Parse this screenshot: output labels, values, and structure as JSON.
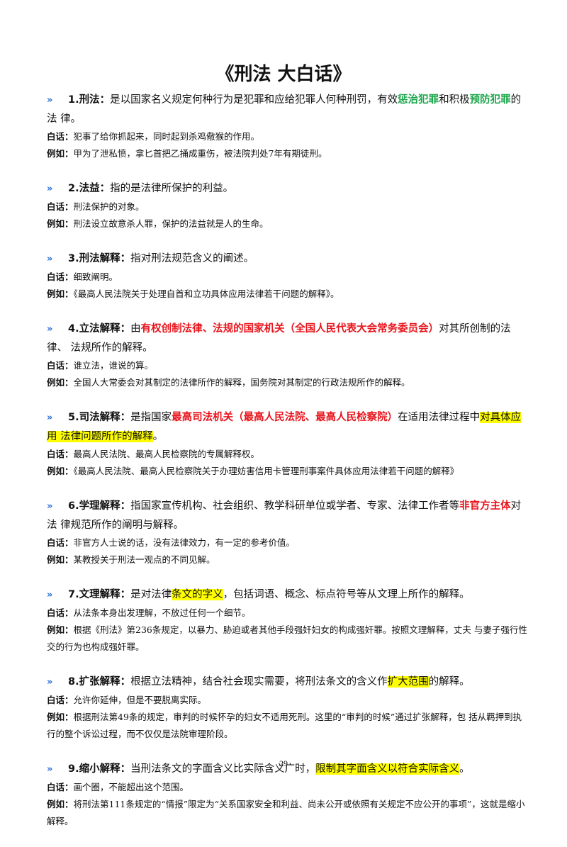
{
  "title": "《刑法 大白话》",
  "entries": [
    {
      "heading": "1.刑法：",
      "definition": [
        {
          "text": "是以国家名义规定何种行为是犯罪和应给犯罪人何种刑罚，有效"
        },
        {
          "text": "惩治犯罪",
          "color": "#1aa64a",
          "bold": true
        },
        {
          "text": "和积极"
        },
        {
          "text": "预防犯罪",
          "color": "#1aa64a",
          "bold": true
        },
        {
          "text": "的法 律。"
        }
      ],
      "plain": {
        "label": "白话：",
        "text": "犯事了给你抓起来，同时起到杀鸡儆猴的作用。"
      },
      "example": {
        "label": "例如：",
        "text": "甲为了泄私愤，拿匕首把乙捅成重伤，被法院判处7年有期徒刑。"
      }
    },
    {
      "heading": "2.法益：",
      "definition": [
        {
          "text": "指的是法律所保护的利益。"
        }
      ],
      "plain": {
        "label": "白话：",
        "text": "刑法保护的对象。"
      },
      "example": {
        "label": "例如：",
        "text": "刑法设立故意杀人罪，保护的法益就是人的生命。"
      }
    },
    {
      "heading": "3.刑法解释：",
      "definition": [
        {
          "text": "指对刑法规范含义的阐述。"
        }
      ],
      "plain": {
        "label": "白话：",
        "text": "细致阐明。"
      },
      "example": {
        "label": "例如：",
        "text": "《最高人民法院关于处理自首和立功具体应用法律若干问题的解释》。"
      }
    },
    {
      "heading": "4.立法解释：",
      "definition": [
        {
          "text": "由"
        },
        {
          "text": "有权创制法律、法规的国家机关（全国人民代表大会常务委员会）",
          "color": "#e8141c",
          "bold": true
        },
        {
          "text": "对其所创制的法律、 法规所作的解释。"
        }
      ],
      "plain": {
        "label": "白话：",
        "text": "谁立法，谁说的算。"
      },
      "example": {
        "label": "例如：",
        "text": "全国人大常委会对其制定的法律所作的解释，国务院对其制定的行政法规所作的解释。"
      }
    },
    {
      "heading": "5.司法解释：",
      "definition": [
        {
          "text": "是指国家"
        },
        {
          "text": "最高司法机关（最高人民法院、最高人民检察院）",
          "color": "#e8141c",
          "bold": true
        },
        {
          "text": "在适用法律过程中"
        },
        {
          "text": "对具体应用 法律问题所作的解释",
          "highlight": true
        },
        {
          "text": "。"
        }
      ],
      "plain": {
        "label": "白话：",
        "text": "最高人民法院、最高人民检察院的专属解释权。"
      },
      "example": {
        "label": "例如：",
        "text": "《最高人民法院、最高人民检察院关于办理妨害信用卡管理刑事案件具体应用法律若干问题的解释》"
      }
    },
    {
      "heading": "6.学理解释：",
      "definition": [
        {
          "text": "指国家宣传机构、社会组织、教学科研单位或学者、专家、法律工作者等"
        },
        {
          "text": "非官方主体",
          "color": "#e8141c",
          "bold": true
        },
        {
          "text": "对法 律规范所作的阐明与解释。"
        }
      ],
      "plain": {
        "label": "白话：",
        "text": "非官方人士说的话，没有法律效力，有一定的参考价值。"
      },
      "example": {
        "label": "例如：",
        "text": "某教授关于刑法一观点的不同见解。"
      }
    },
    {
      "heading": "7.文理解释：",
      "definition": [
        {
          "text": "是对法律"
        },
        {
          "text": "条文的字义",
          "highlight": true
        },
        {
          "text": "，包括词语、概念、标点符号等从文理上所作的解释。"
        }
      ],
      "plain": {
        "label": "白话：",
        "text": "从法条本身出发理解，不放过任何一个细节。"
      },
      "example": {
        "label": "例如：",
        "text": "根据《刑法》第236条规定，以暴力、胁迫或者其他手段强奸妇女的构成强奸罪。按照文理解释，丈夫 与妻子强行性交的行为也构成强奸罪。"
      }
    },
    {
      "heading": "8.扩张解释：",
      "definition": [
        {
          "text": "根据立法精神，结合社会现实需要，将刑法条文的含义作"
        },
        {
          "text": "扩大范围",
          "highlight": true
        },
        {
          "text": "的解释。"
        }
      ],
      "plain": {
        "label": "白话：",
        "text": "允许你延伸，但是不要脱离实际。"
      },
      "example": {
        "label": "例如：",
        "text": "根据刑法第49条的规定，审判的时候怀孕的妇女不适用死刑。这里的“审判的时候”通过扩张解释，包 括从羁押到执行的整个诉讼过程，而不仅仅是法院审理阶段。"
      }
    },
    {
      "heading": "9.缩小解释：",
      "definition": [
        {
          "text": "当刑法条文的字面含义比实际含义广时，"
        },
        {
          "text": "限制其字面含义以符合实际含义",
          "highlight": true
        },
        {
          "text": "。"
        }
      ],
      "plain": {
        "label": "白话：",
        "text": "画个圈，不能超出这个范围。"
      },
      "example": {
        "label": "例如：",
        "text": "将刑法第111条规定的“情报”限定为“关系国家安全和利益、尚未公开或依照有关规定不应公开的事项”，这就是缩小解释。"
      }
    }
  ],
  "page_number": "29"
}
